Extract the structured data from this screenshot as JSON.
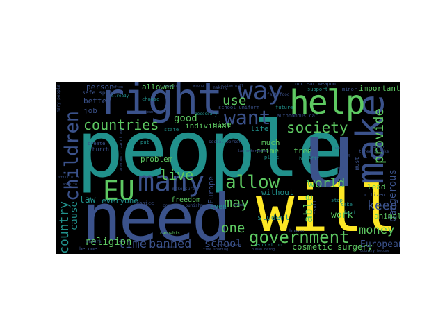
{
  "image": {
    "type": "word-cloud",
    "background": "#000000",
    "palette": [
      "#440154",
      "#3b528b",
      "#21918c",
      "#5ec962",
      "#fde725"
    ]
  },
  "words": {
    "people": "people",
    "need": "need",
    "will": "will",
    "right": "right",
    "make": "make",
    "help": "help",
    "way": "way",
    "u": "u",
    "many": "many",
    "EU": "EU",
    "allow": "allow",
    "government": "government",
    "children": "children",
    "country": "country",
    "countries": "countries",
    "want": "want",
    "society": "society",
    "provide": "provide",
    "world": "world",
    "able": "able",
    "keep": "keep",
    "money": "money",
    "use": "use",
    "live": "live",
    "may": "may",
    "one": "one",
    "time": "time",
    "banned": "banned",
    "school": "school",
    "religion": "religion",
    "cause": "cause",
    "law": "law",
    "work": "work",
    "good": "good",
    "dangerous": "dangerous",
    "European": "European",
    "cosmetic_surgery": "cosmetic surgery",
    "allowed": "allowed",
    "important": "important",
    "better": "better",
    "person": "person",
    "job": "job",
    "problem": "problem",
    "freedom": "freedom",
    "crime": "crime",
    "free": "free",
    "much": "much",
    "lead": "lead",
    "animal": "animal",
    "student": "student",
    "give": "give",
    "individual": "individual",
    "life": "life",
    "without": "without",
    "everyone": "everyone",
    "Europe": "Europe",
    "even": "even",
    "safe_space": "safe space",
    "nuclear_weapon": "nuclear weapon",
    "school_uniform": "school uniform",
    "autonomous_car": "autonomous car",
    "church": "church",
    "future": "future",
    "support": "support",
    "state": "state",
    "place": "place",
    "benefit": "benefit",
    "must": "must",
    "citizen": "citizen",
    "education": "education",
    "food": "food",
    "put": "put",
    "choice": "choice",
    "corporal_punishment": "corporal punishment",
    "take": "take",
    "stop": "stop",
    "result": "result",
    "human": "human",
    "become": "become",
    "already": "already",
    "necessary": "necessary",
    "choose": "choose",
    "minor": "minor",
    "cannabis": "cannabis",
    "create": "create",
    "economic_sanctions": "economic sanctions",
    "many_people": "many people",
    "make_sure": "make sure",
    "fast_food": "fast food",
    "social_person": "social person",
    "three_strike": "three strike",
    "ensure": "ensure",
    "women": "women",
    "making": "making",
    "time_sharing": "time sharing",
    "humans_being": "human being",
    "still_will": "still will",
    "able_to": "able to",
    "pride_parade": "pride parade",
    "country_become": "country become",
    "wrong": "wrong",
    "order": "order",
    "drug": "drug",
    "weapon": "weapon",
    "team": "team",
    "often": "often",
    "think": "think",
    "law_enforcement": "law enforcement",
    "crime_will": "crime will",
    "used": "used",
    "increase": "increase"
  }
}
